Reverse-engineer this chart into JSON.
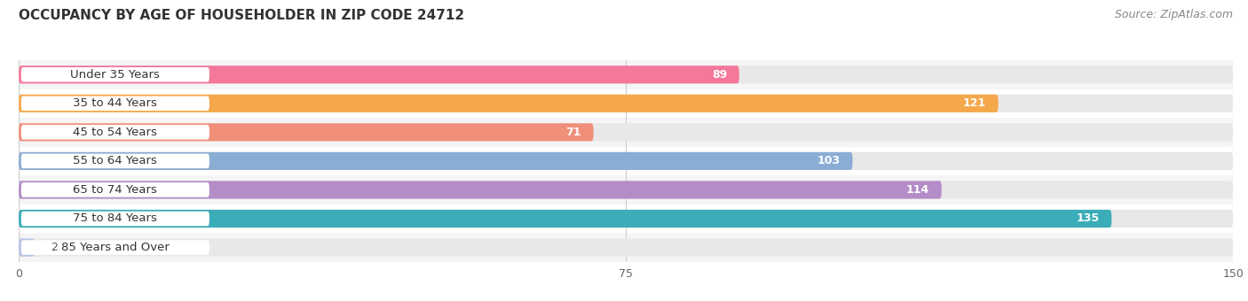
{
  "title": "OCCUPANCY BY AGE OF HOUSEHOLDER IN ZIP CODE 24712",
  "source": "Source: ZipAtlas.com",
  "categories": [
    "Under 35 Years",
    "35 to 44 Years",
    "45 to 54 Years",
    "55 to 64 Years",
    "65 to 74 Years",
    "75 to 84 Years",
    "85 Years and Over"
  ],
  "values": [
    89,
    121,
    71,
    103,
    114,
    135,
    2
  ],
  "bar_colors": [
    "#F4789A",
    "#F5A84B",
    "#F0907A",
    "#8AADD4",
    "#B48CC8",
    "#3BADB8",
    "#B8C4E8"
  ],
  "bar_track_color": "#E8E8E8",
  "xlim": [
    0,
    150
  ],
  "xticks": [
    0,
    75,
    150
  ],
  "background_color": "#FFFFFF",
  "title_fontsize": 11,
  "source_fontsize": 9,
  "label_fontsize": 9.5,
  "value_fontsize": 9,
  "bar_height": 0.62,
  "title_color": "#333333",
  "source_color": "#888888",
  "label_color": "#333333",
  "grid_color": "#CCCCCC",
  "row_bg_odd": "#F5F5F5",
  "row_bg_even": "#FFFFFF"
}
